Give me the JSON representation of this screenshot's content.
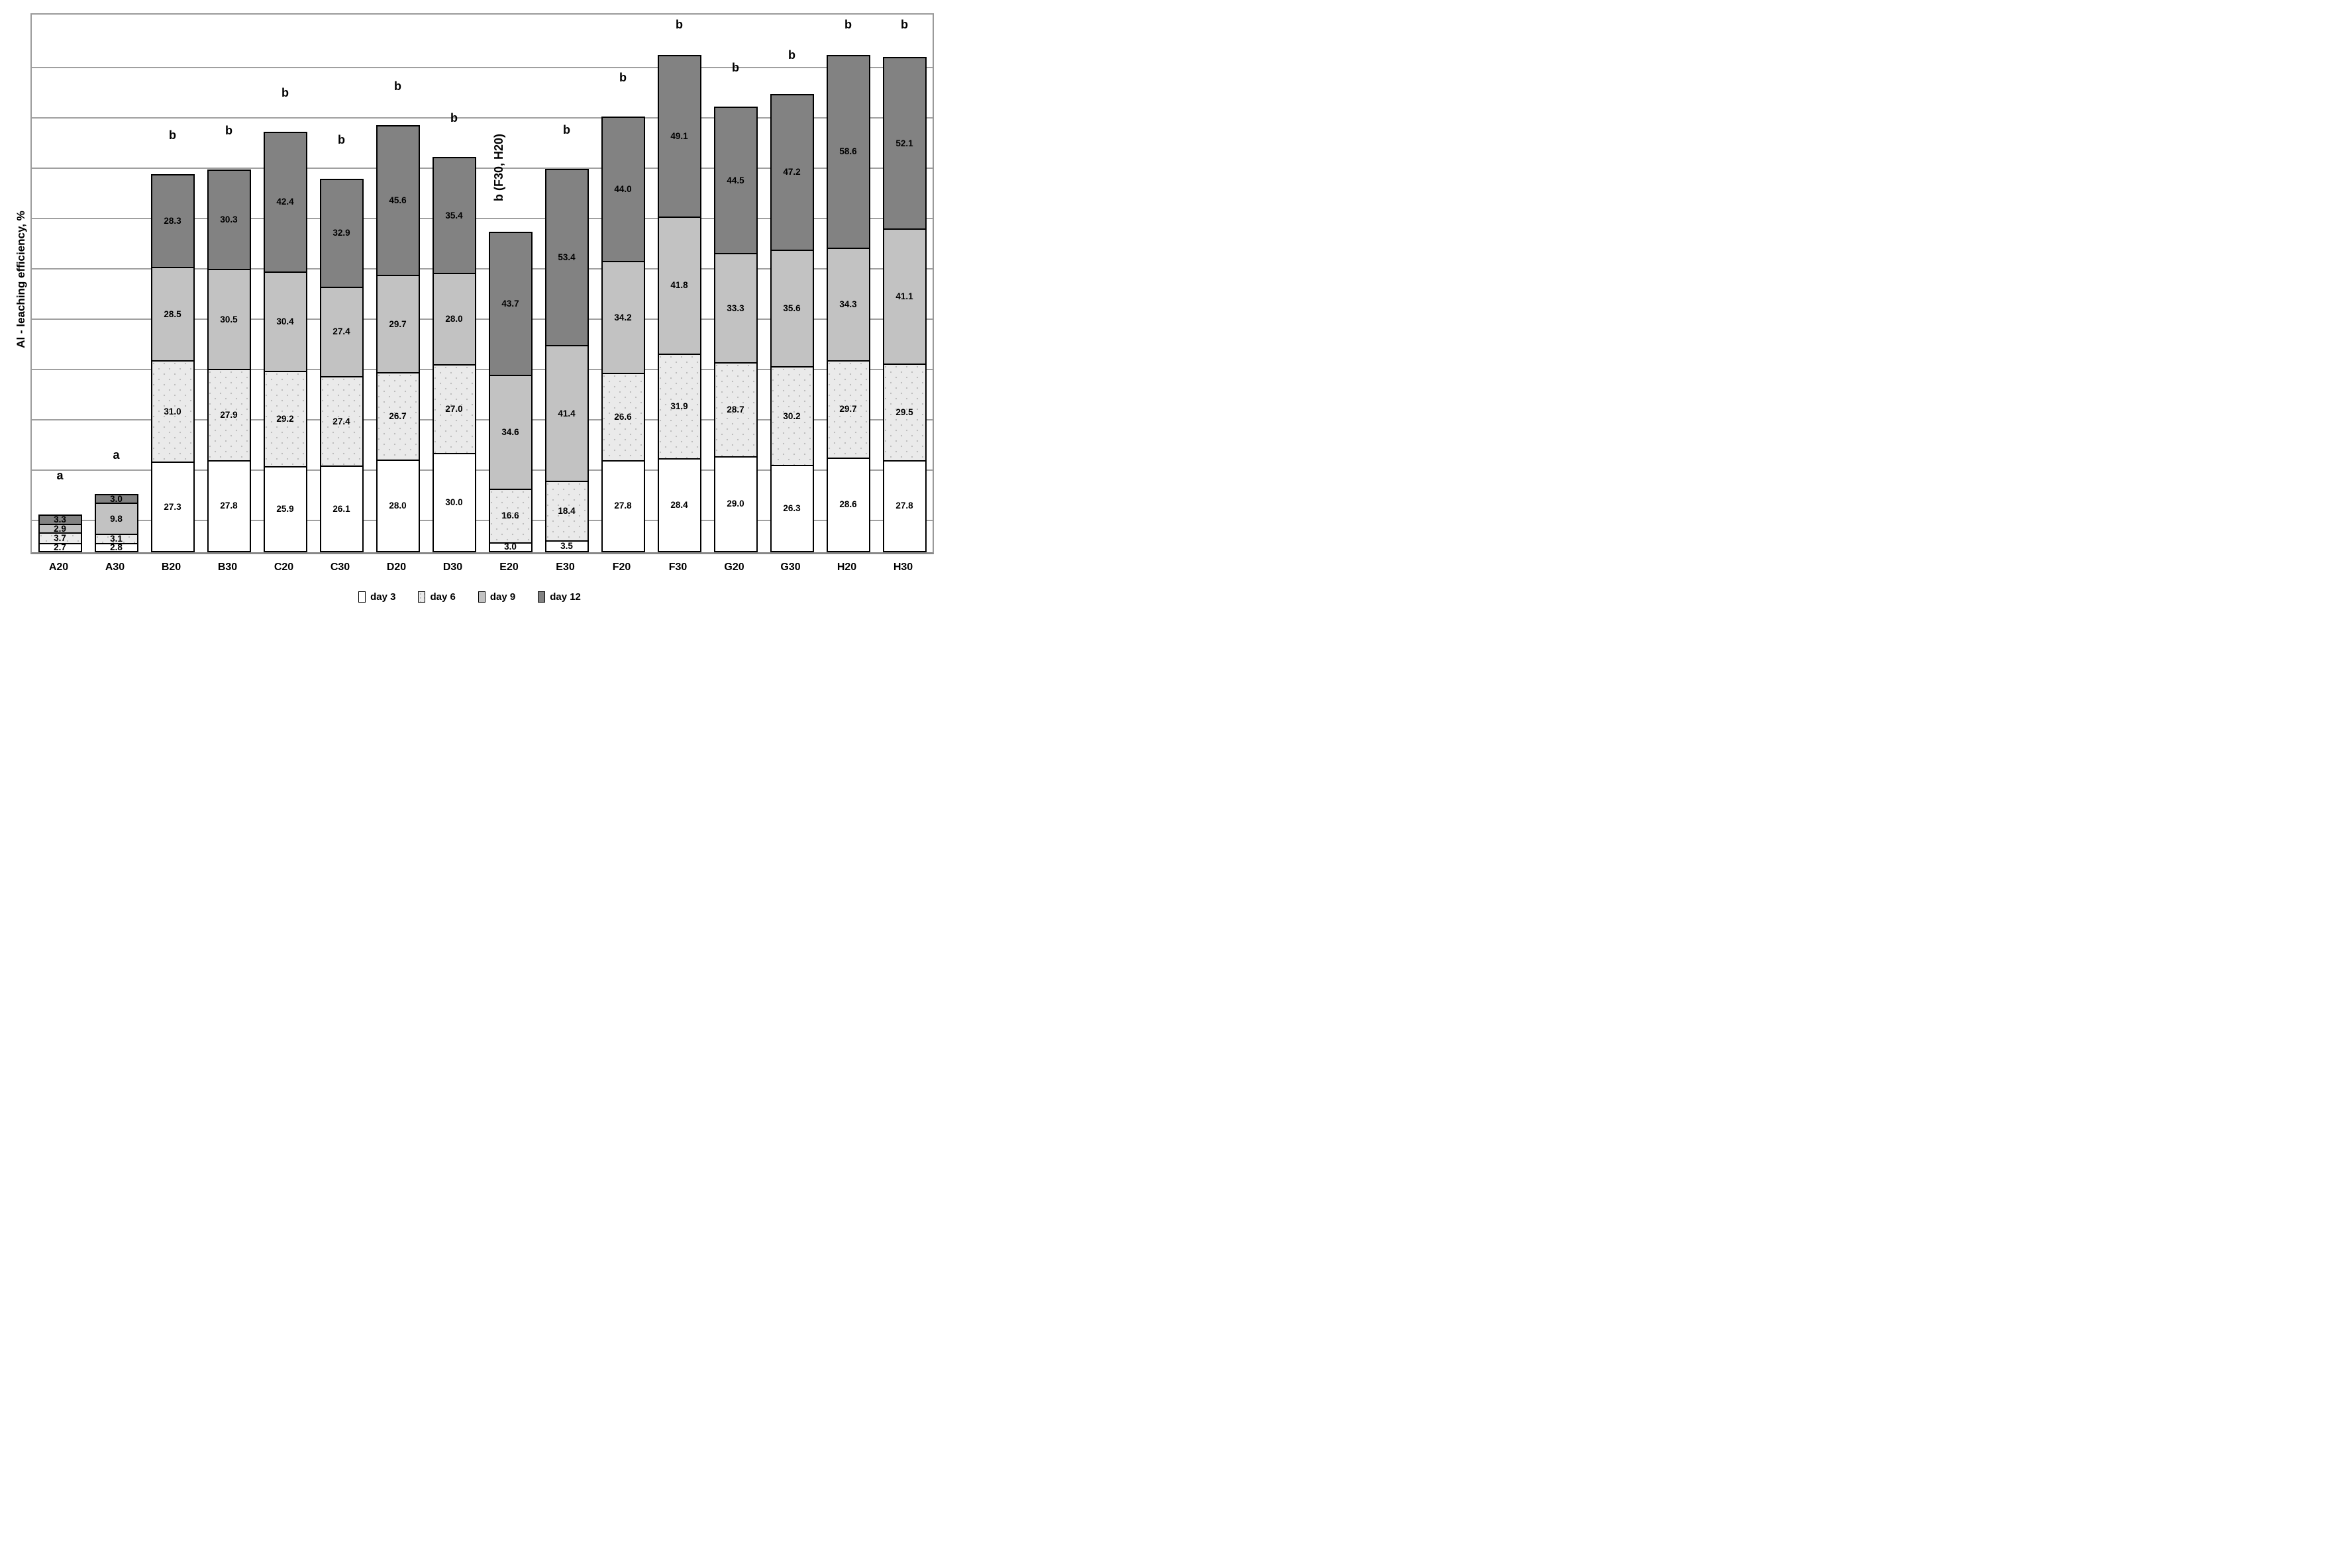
{
  "chart_data": {
    "type": "bar",
    "subtype": "stacked-vertical",
    "title": "",
    "ylabel": "Al - leaching efficiency, %",
    "xlabel": "",
    "grid": "horizontal",
    "legend_position": "bottom",
    "categories": [
      "A20",
      "A30",
      "B20",
      "B30",
      "C20",
      "C30",
      "D20",
      "D30",
      "E20",
      "E30",
      "F20",
      "F30",
      "G20",
      "G30",
      "H20",
      "H30"
    ],
    "series": [
      {
        "name": "day 3",
        "color": "#ffffff",
        "values": [
          2.7,
          2.8,
          27.3,
          27.8,
          25.9,
          26.1,
          28.0,
          30.0,
          3.0,
          3.5,
          27.8,
          28.4,
          29.0,
          26.3,
          28.6,
          27.8
        ]
      },
      {
        "name": "day 6",
        "color": "#eaeaea",
        "values": [
          3.7,
          3.1,
          31.0,
          27.9,
          29.2,
          27.4,
          26.7,
          27.0,
          16.6,
          18.4,
          26.6,
          31.9,
          28.7,
          30.2,
          29.7,
          29.5
        ]
      },
      {
        "name": "day 9",
        "color": "#c2c2c2",
        "values": [
          2.9,
          9.8,
          28.5,
          30.5,
          30.4,
          27.4,
          29.7,
          28.0,
          34.6,
          41.4,
          34.2,
          41.8,
          33.3,
          35.6,
          34.3,
          41.1
        ]
      },
      {
        "name": "day 12",
        "color": "#828282",
        "values": [
          3.3,
          3.0,
          28.3,
          30.3,
          42.4,
          32.9,
          45.6,
          35.4,
          43.7,
          53.4,
          44.0,
          49.1,
          44.5,
          47.2,
          58.6,
          52.1
        ]
      }
    ],
    "annotations": [
      "a",
      "a",
      "b",
      "b",
      "b",
      "b",
      "b",
      "b",
      "b (F30, H20)",
      "b",
      "b",
      "b",
      "b",
      "b",
      "b",
      "b"
    ],
    "rotated_annotation_index": 8,
    "value_label_decimals": 1,
    "legend": [
      "day 3",
      "day 6",
      "day 9",
      "day 12"
    ]
  }
}
